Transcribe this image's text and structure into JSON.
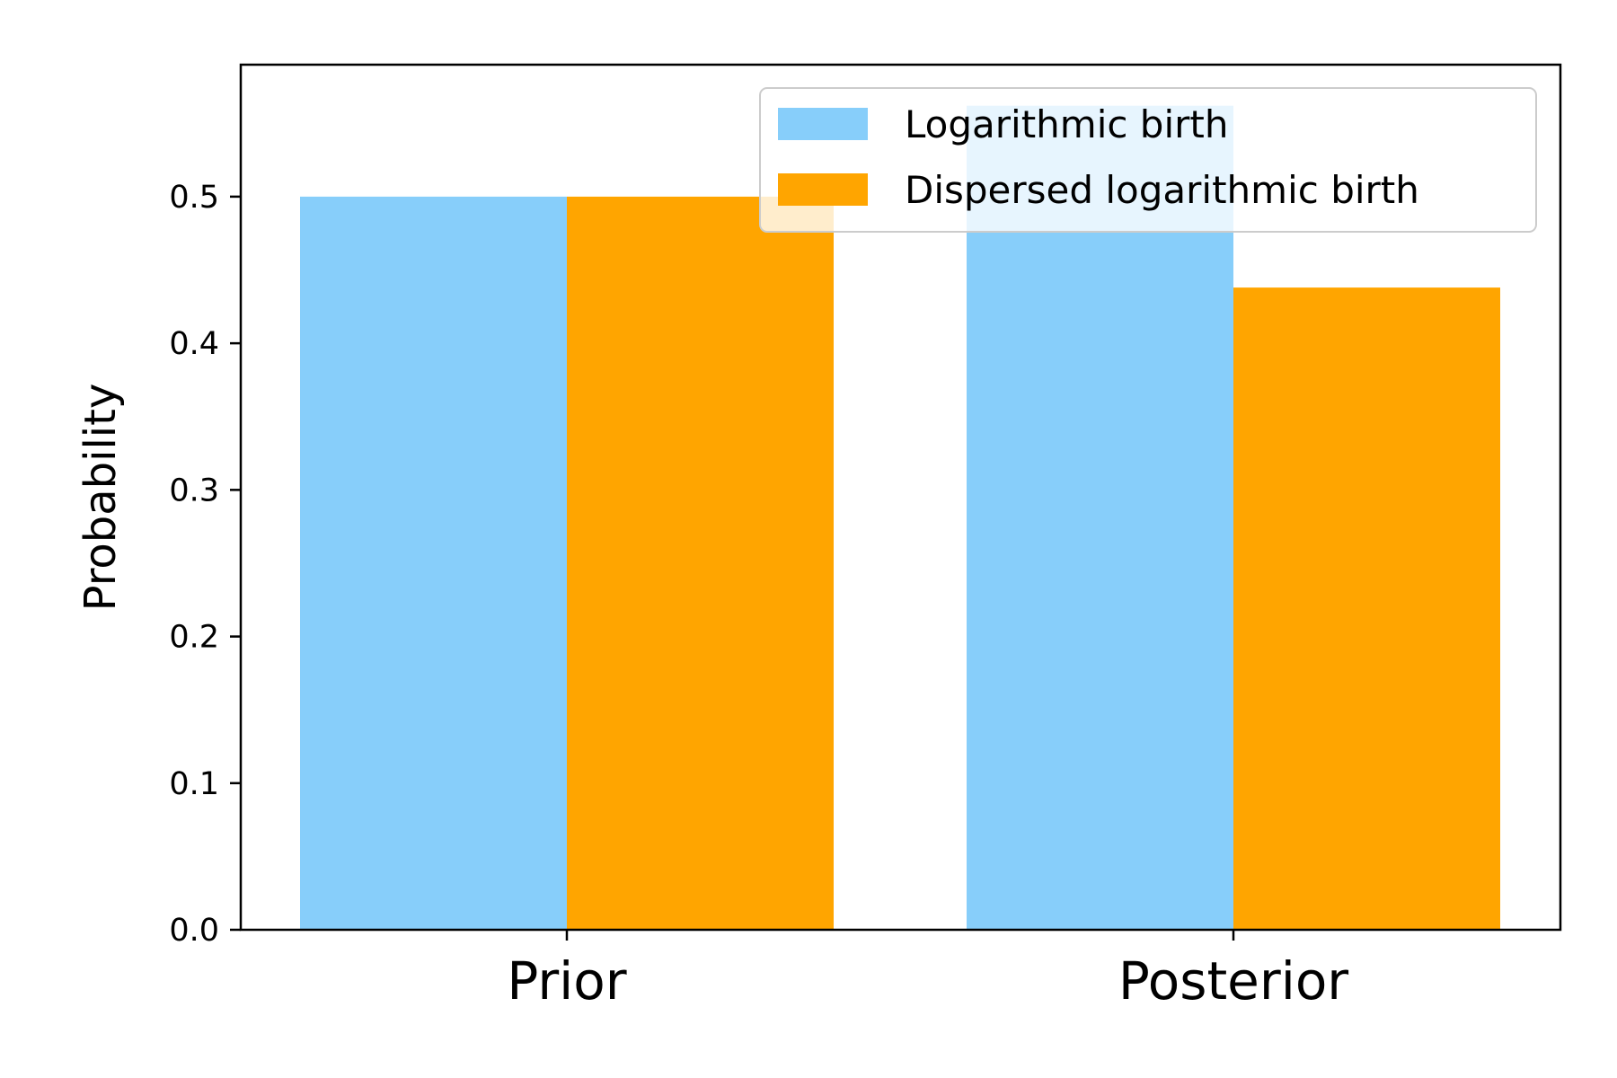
{
  "chart_data": {
    "type": "bar",
    "categories": [
      "Prior",
      "Posterior"
    ],
    "series": [
      {
        "name": "Logarithmic birth",
        "values": [
          0.5,
          0.562
        ],
        "color": "#87CEFA"
      },
      {
        "name": "Dispersed logarithmic birth",
        "values": [
          0.5,
          0.438
        ],
        "color": "#FFA500"
      }
    ],
    "ylabel": "Probability",
    "xlabel": "",
    "ylim": [
      0,
      0.59
    ],
    "yticks": [
      "0.0",
      "0.1",
      "0.2",
      "0.3",
      "0.4",
      "0.5"
    ],
    "legend_position": "top-right",
    "grid": false
  }
}
